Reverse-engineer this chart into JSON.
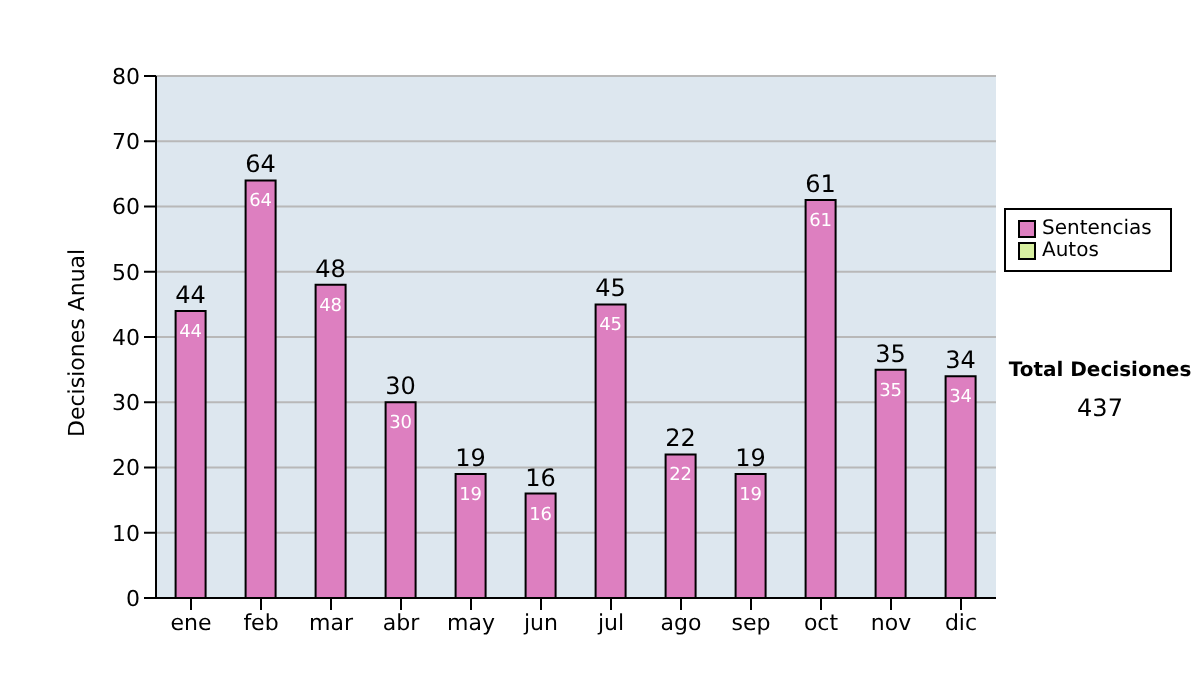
{
  "chart_data": {
    "type": "bar",
    "stacked": true,
    "ylabel": "Decisiones Anual",
    "categories": [
      "ene",
      "feb",
      "mar",
      "abr",
      "may",
      "jun",
      "jul",
      "ago",
      "sep",
      "oct",
      "nov",
      "dic"
    ],
    "series": [
      {
        "name": "Sentencias",
        "color": "#dd7fc0",
        "values": [
          44,
          64,
          48,
          30,
          19,
          16,
          45,
          22,
          19,
          61,
          35,
          34
        ],
        "value_labels": [
          "44",
          "64",
          "48",
          "30",
          "19",
          "16",
          "45",
          "22",
          "19",
          "61",
          "35",
          "34"
        ]
      },
      {
        "name": "Autos",
        "color": "#d8f0a0",
        "values": [
          0,
          0,
          0,
          0,
          0,
          0,
          0,
          0,
          0,
          0,
          0,
          0
        ]
      }
    ],
    "totals": [
      "44",
      "64",
      "48",
      "30",
      "19",
      "16",
      "45",
      "22",
      "19",
      "61",
      "35",
      "34"
    ],
    "ylim": [
      0,
      80
    ],
    "yticks": [
      0,
      10,
      20,
      30,
      40,
      50,
      60,
      70,
      80
    ],
    "grid": "y",
    "legend": "right",
    "annotations": [
      "Total Decisiones",
      "437"
    ]
  }
}
